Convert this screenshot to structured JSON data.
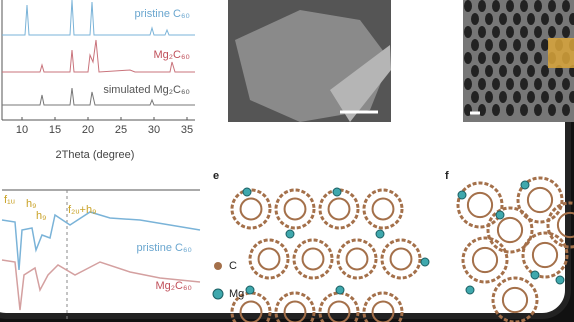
{
  "panel_xrd": {
    "traces": [
      "pristine C₆₀",
      "Mg₂C₆₀",
      "simulated Mg₂C₆₀"
    ],
    "x_ticks": [
      "10",
      "15",
      "20",
      "25",
      "30",
      "35"
    ],
    "x_label": "2Theta (degree)"
  },
  "panel_spectra": {
    "peaks": [
      "f₁ᵤ",
      "h₉",
      "h₉",
      "f₂ᵤ+h₉"
    ],
    "traces": [
      "pristine C₆₀",
      "Mg₂C₆₀"
    ]
  },
  "panel_e": {
    "letter": "e",
    "legend": [
      "C",
      "Mg"
    ]
  },
  "panel_f": {
    "letter": "f"
  }
}
